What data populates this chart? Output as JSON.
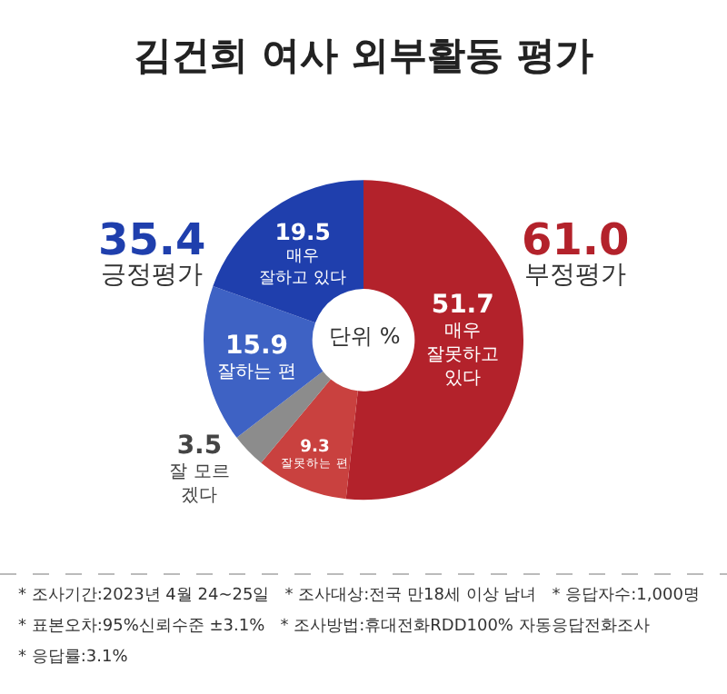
{
  "chart_data": {
    "type": "donut",
    "title": "김건희 여사 외부활동 평가",
    "categories": [
      "매우\n잘못하고\n있다",
      "잘못하는 편",
      "잘 모르\n겠다",
      "잘하는 편",
      "매우\n잘하고 있다"
    ],
    "values": [
      51.7,
      9.3,
      3.5,
      15.9,
      19.5
    ],
    "colors": [
      "#b3222b",
      "#c9413f",
      "#8c8c8c",
      "#3e62c4",
      "#1f3fad"
    ],
    "data_labels": true,
    "annotations": [
      "단위 %",
      "35.4\n긍정평가",
      "61.0\n부정평가",
      "* 조사기간:2023년 4월 24~25일   * 조사대상:전국 만18세 이상 남녀   * 응답자수:1,000명",
      "* 표본오차:95%신뢰수준 ±3.1%   * 조사방법:휴대전화RDD100% 자동응답전화조사",
      "* 응답률:3.1%"
    ]
  }
}
